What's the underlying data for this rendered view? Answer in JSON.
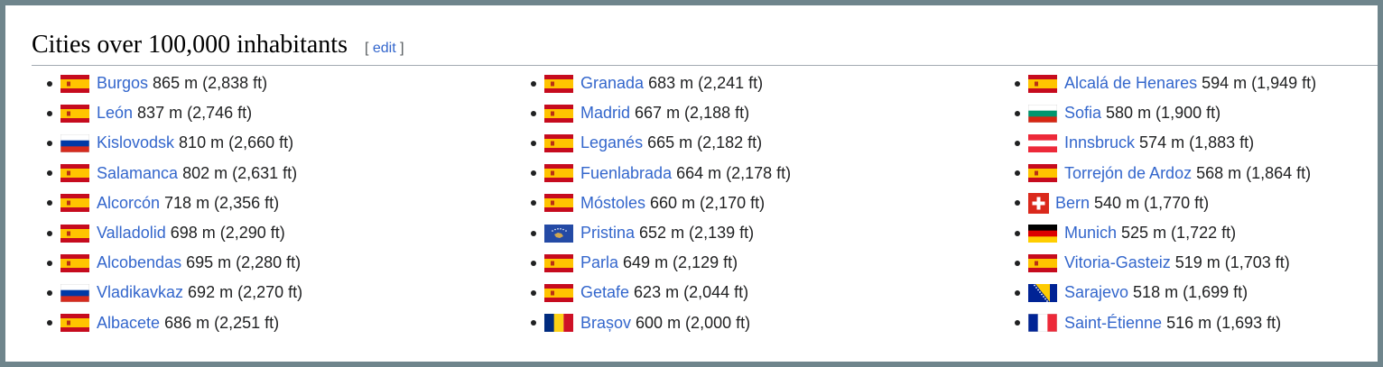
{
  "heading": {
    "title": "Cities over 100,000 inhabitants",
    "edit_open": "[ ",
    "edit_label": "edit",
    "edit_close": " ]"
  },
  "columns": [
    [
      {
        "city": "Burgos",
        "elevation": "865 m (2,838 ft)",
        "flag": "spain-flag-icon"
      },
      {
        "city": "León",
        "elevation": "837 m (2,746 ft)",
        "flag": "spain-flag-icon"
      },
      {
        "city": "Kislovodsk",
        "elevation": "810 m (2,660 ft)",
        "flag": "russia-flag-icon"
      },
      {
        "city": "Salamanca",
        "elevation": "802 m (2,631 ft)",
        "flag": "spain-flag-icon"
      },
      {
        "city": "Alcorcón",
        "elevation": "718 m (2,356 ft)",
        "flag": "spain-flag-icon"
      },
      {
        "city": "Valladolid",
        "elevation": "698 m (2,290 ft)",
        "flag": "spain-flag-icon"
      },
      {
        "city": "Alcobendas",
        "elevation": "695 m (2,280 ft)",
        "flag": "spain-flag-icon"
      },
      {
        "city": "Vladikavkaz",
        "elevation": "692 m (2,270 ft)",
        "flag": "russia-flag-icon"
      },
      {
        "city": "Albacete",
        "elevation": "686 m (2,251 ft)",
        "flag": "spain-flag-icon"
      }
    ],
    [
      {
        "city": "Granada",
        "elevation": "683 m (2,241 ft)",
        "flag": "spain-flag-icon"
      },
      {
        "city": "Madrid",
        "elevation": "667 m (2,188 ft)",
        "flag": "spain-flag-icon"
      },
      {
        "city": "Leganés",
        "elevation": "665 m (2,182 ft)",
        "flag": "spain-flag-icon"
      },
      {
        "city": "Fuenlabrada",
        "elevation": "664 m (2,178 ft)",
        "flag": "spain-flag-icon"
      },
      {
        "city": "Móstoles",
        "elevation": "660 m (2,170 ft)",
        "flag": "spain-flag-icon"
      },
      {
        "city": "Pristina",
        "elevation": "652 m (2,139 ft)",
        "flag": "kosovo-flag-icon"
      },
      {
        "city": "Parla",
        "elevation": "649 m (2,129 ft)",
        "flag": "spain-flag-icon"
      },
      {
        "city": "Getafe",
        "elevation": "623 m (2,044 ft)",
        "flag": "spain-flag-icon"
      },
      {
        "city": "Brașov",
        "elevation": "600 m (2,000 ft)",
        "flag": "romania-flag-icon"
      }
    ],
    [
      {
        "city": "Alcalá de Henares",
        "elevation": "594 m (1,949 ft)",
        "flag": "spain-flag-icon"
      },
      {
        "city": "Sofia",
        "elevation": "580 m (1,900 ft)",
        "flag": "bulgaria-flag-icon"
      },
      {
        "city": "Innsbruck",
        "elevation": "574 m (1,883 ft)",
        "flag": "austria-flag-icon"
      },
      {
        "city": "Torrejón de Ardoz",
        "elevation": "568 m (1,864 ft)",
        "flag": "spain-flag-icon"
      },
      {
        "city": "Bern",
        "elevation": "540 m (1,770 ft)",
        "flag": "switzerland-flag-icon"
      },
      {
        "city": "Munich",
        "elevation": "525 m (1,722 ft)",
        "flag": "germany-flag-icon"
      },
      {
        "city": "Vitoria-Gasteiz",
        "elevation": "519 m (1,703 ft)",
        "flag": "spain-flag-icon"
      },
      {
        "city": "Sarajevo",
        "elevation": "518 m (1,699 ft)",
        "flag": "bosnia-flag-icon"
      },
      {
        "city": "Saint-Étienne",
        "elevation": "516 m (1,693 ft)",
        "flag": "france-flag-icon"
      }
    ]
  ],
  "colors": {
    "link": "#3366cc",
    "text": "#202122"
  }
}
